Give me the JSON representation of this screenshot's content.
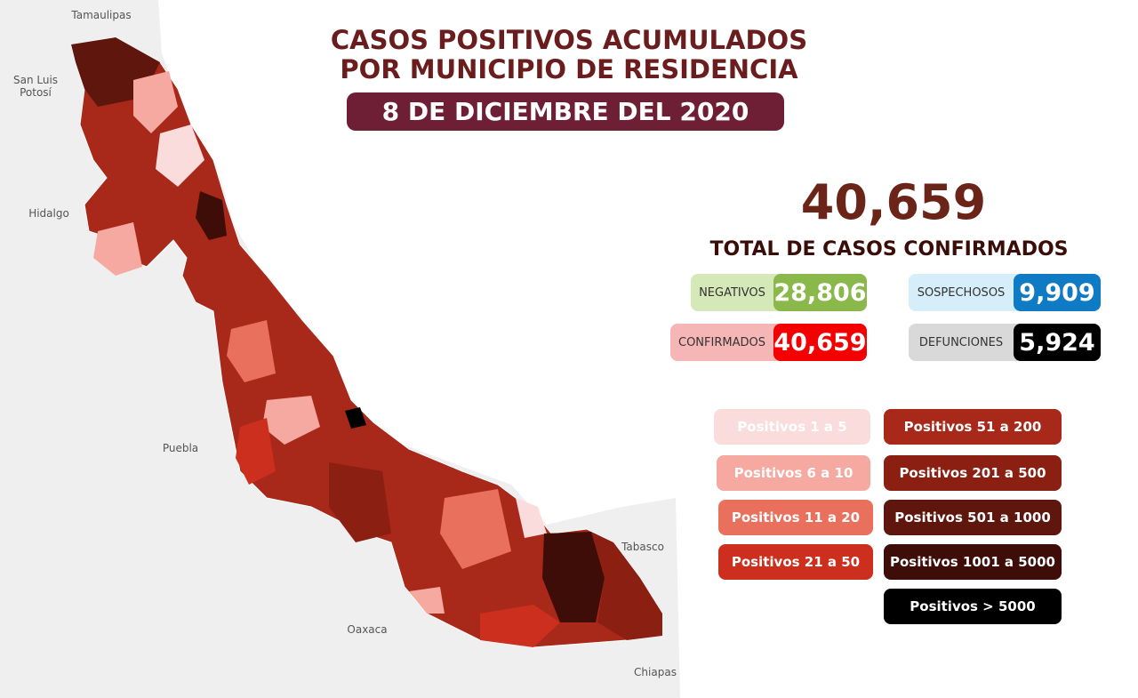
{
  "header": {
    "title_lines": [
      "CASOS POSITIVOS ACUMULADOS",
      "POR MUNICIPIO DE RESIDENCIA"
    ],
    "date": "8 DE DICIEMBRE DEL 2020"
  },
  "summary": {
    "total": "40,659",
    "total_label": "TOTAL DE CASOS CONFIRMADOS"
  },
  "stats": [
    {
      "label": "NEGATIVOS",
      "value": "28,806"
    },
    {
      "label": "SOSPECHOSOS",
      "value": "9,909"
    },
    {
      "label": "CONFIRMADOS",
      "value": "40,659"
    },
    {
      "label": "DEFUNCIONES",
      "value": "5,924"
    }
  ],
  "legend": [
    "Positivos 1 a 5",
    "Positivos 6 a 10",
    "Positivos 11 a 20",
    "Positivos 21 a 50",
    "Positivos 51 a 200",
    "Positivos 201 a 500",
    "Positivos 501 a 1000",
    "Positivos 1001 a 5000",
    "Positivos > 5000"
  ],
  "map": {
    "labels": [
      "Tamaulipas",
      "San Luis Potosí",
      "Hidalgo",
      "Puebla",
      "Oaxaca",
      "Tabasco",
      "Chiapas"
    ]
  }
}
